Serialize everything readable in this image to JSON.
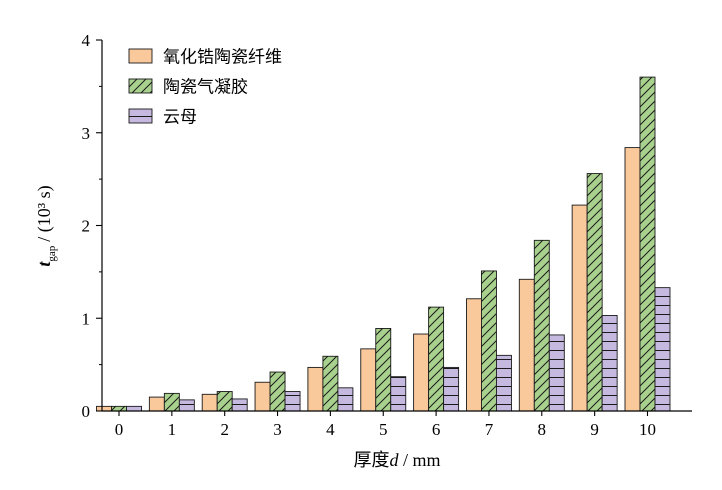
{
  "chart_data": {
    "type": "bar",
    "categories": [
      "0",
      "1",
      "2",
      "3",
      "4",
      "5",
      "6",
      "7",
      "8",
      "9",
      "10"
    ],
    "series": [
      {
        "name": "氧化锆陶瓷纤维",
        "values": [
          0.05,
          0.15,
          0.18,
          0.31,
          0.47,
          0.67,
          0.83,
          1.21,
          1.42,
          2.22,
          2.84
        ],
        "color": "#f9c89b",
        "pattern": "none"
      },
      {
        "name": "陶瓷气凝胶",
        "values": [
          0.05,
          0.19,
          0.21,
          0.42,
          0.59,
          0.89,
          1.12,
          1.51,
          1.84,
          2.56,
          3.6
        ],
        "color": "#a9d18e",
        "pattern": "diagonal"
      },
      {
        "name": "云母",
        "values": [
          0.05,
          0.12,
          0.13,
          0.21,
          0.25,
          0.37,
          0.47,
          0.6,
          0.82,
          1.03,
          1.33
        ],
        "color": "#c5b9df",
        "pattern": "horizontal"
      }
    ],
    "ylim": [
      0,
      4
    ],
    "yticks": [
      "0",
      "1",
      "2",
      "3",
      "4"
    ],
    "xlabel": "厚度d / mm",
    "xlabel_cn": "厚度",
    "xlabel_var": "d",
    "xlabel_unit": " / mm",
    "ylabel_var": "t",
    "ylabel_sub": "gap",
    "ylabel_unit": "/ (10³ s)",
    "grid": false,
    "legend_position": "top-left"
  }
}
